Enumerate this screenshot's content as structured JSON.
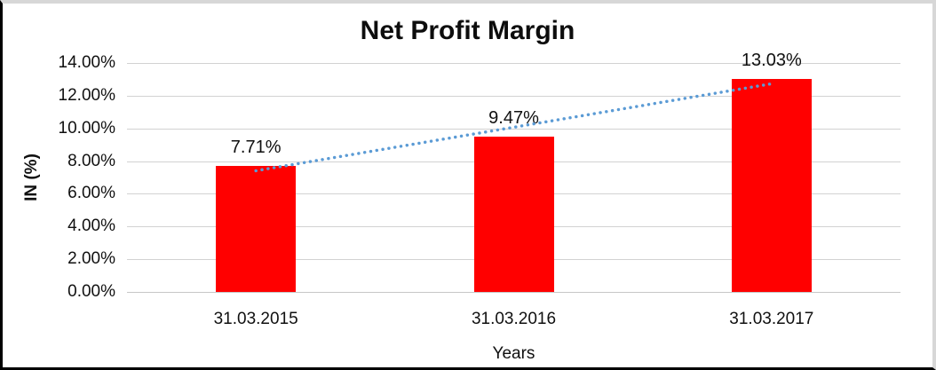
{
  "chart_data": {
    "type": "bar",
    "title": "Net Profit Margin",
    "xlabel": "Years",
    "ylabel": "IN (%)",
    "categories": [
      "31.03.2015",
      "31.03.2016",
      "31.03.2017"
    ],
    "values": [
      7.71,
      9.47,
      13.03
    ],
    "data_labels": [
      "7.71%",
      "9.47%",
      "13.03%"
    ],
    "ylim": [
      0,
      14
    ],
    "ytick_labels": [
      "0.00%",
      "2.00%",
      "4.00%",
      "6.00%",
      "8.00%",
      "10.00%",
      "12.00%",
      "14.00%"
    ],
    "grid": true,
    "legend": false,
    "colors": {
      "bar": "#ff0000",
      "trendline": "#5b9bd5",
      "gridline": "#d2d2d2",
      "text": "#101010"
    },
    "trendline": {
      "type": "linear",
      "style": "dotted"
    }
  }
}
